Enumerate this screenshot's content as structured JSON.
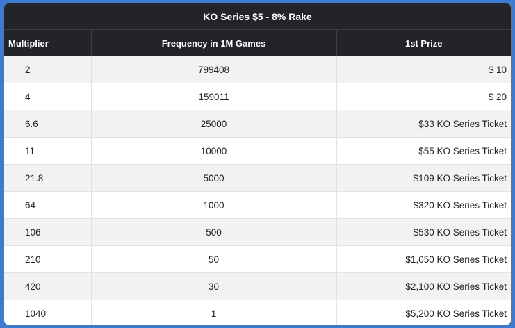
{
  "title": "KO Series $5 - 8% Rake",
  "headers": [
    "Multiplier",
    "Frequency in 1M Games",
    "1st Prize"
  ],
  "rows": [
    {
      "multiplier": "2",
      "frequency": "799408",
      "prize": "$ 10"
    },
    {
      "multiplier": "4",
      "frequency": "159011",
      "prize": "$ 20"
    },
    {
      "multiplier": "6.6",
      "frequency": "25000",
      "prize": "$33 KO Series Ticket"
    },
    {
      "multiplier": "11",
      "frequency": "10000",
      "prize": "$55 KO Series Ticket"
    },
    {
      "multiplier": "21.8",
      "frequency": "5000",
      "prize": "$109 KO Series Ticket"
    },
    {
      "multiplier": "64",
      "frequency": "1000",
      "prize": "$320 KO Series Ticket"
    },
    {
      "multiplier": "106",
      "frequency": "500",
      "prize": "$530 KO Series Ticket"
    },
    {
      "multiplier": "210",
      "frequency": "50",
      "prize": "$1,050 KO Series Ticket"
    },
    {
      "multiplier": "420",
      "frequency": "30",
      "prize": "$2,100 KO Series Ticket"
    },
    {
      "multiplier": "1040",
      "frequency": "1",
      "prize": "$5,200 KO Series Ticket"
    }
  ]
}
